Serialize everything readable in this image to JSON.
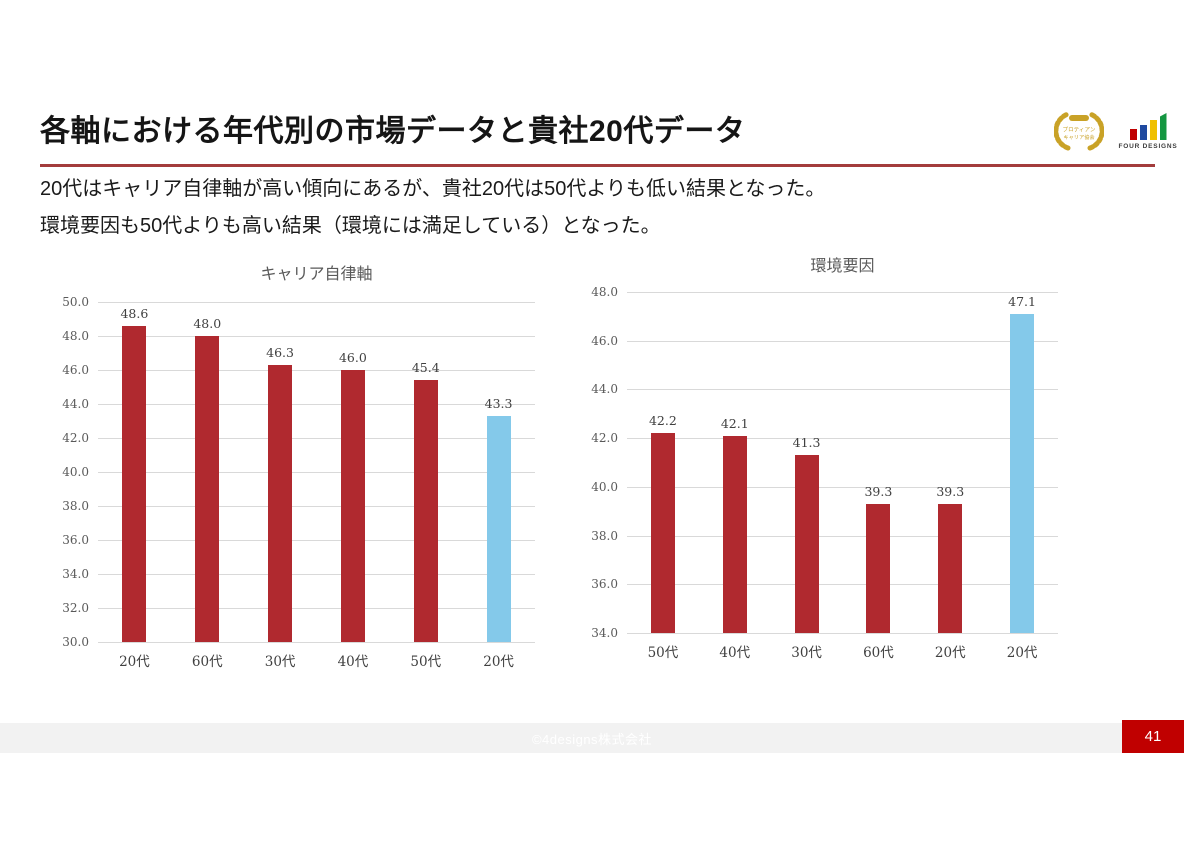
{
  "slide": {
    "title": "各軸における年代別の市場データと貴社20代データ",
    "lead_lines": [
      "20代はキャリア自律軸が高い傾向にあるが、貴社20代は50代よりも低い結果となった。",
      "環境要因も50代よりも高い結果（環境には満足している）となった。"
    ]
  },
  "logos": {
    "certification_badge": {
      "line1": "プロティアン",
      "line2": "キャリア協会"
    },
    "four_designs": {
      "wordmark": "FOUR DESIGNS"
    }
  },
  "chart_data": [
    {
      "type": "bar",
      "title": "キャリア自律軸",
      "categories": [
        "20代",
        "60代",
        "30代",
        "40代",
        "50代",
        "20代"
      ],
      "values": [
        48.6,
        48.0,
        46.3,
        46.0,
        45.4,
        43.3
      ],
      "bar_colors": [
        "#B0292F",
        "#B0292F",
        "#B0292F",
        "#B0292F",
        "#B0292F",
        "#84C9EA"
      ],
      "xlabel": "",
      "ylabel": "",
      "ylim": [
        30.0,
        50.0
      ],
      "ytick_step": 2.0,
      "grid": true,
      "legend": "none"
    },
    {
      "type": "bar",
      "title": "環境要因",
      "categories": [
        "50代",
        "40代",
        "30代",
        "60代",
        "20代",
        "20代"
      ],
      "values": [
        42.2,
        42.1,
        41.3,
        39.3,
        39.3,
        47.1
      ],
      "bar_colors": [
        "#B0292F",
        "#B0292F",
        "#B0292F",
        "#B0292F",
        "#B0292F",
        "#84C9EA"
      ],
      "xlabel": "",
      "ylabel": "",
      "ylim": [
        34.0,
        48.0
      ],
      "ytick_step": 2.0,
      "grid": true,
      "legend": "none"
    }
  ],
  "footer": {
    "copyright": "©4designs株式会社",
    "page_number": "41"
  },
  "colors": {
    "underline_red": "#A33C3C",
    "accent_red": "#C00000",
    "bar_red": "#B0292F",
    "bar_blue": "#84C9EA",
    "grid_gray": "#D9D9D9",
    "footer_gray": "#F2F2F2",
    "gold": "#C9A227",
    "logo_red": "#C00000",
    "logo_blue": "#1F49A0",
    "logo_yellow": "#F0C000",
    "logo_green": "#149641"
  }
}
